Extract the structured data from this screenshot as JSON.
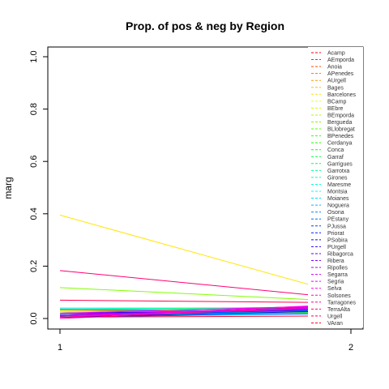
{
  "chart_data": {
    "type": "line",
    "title": "Prop. of pos & neg by Region",
    "xlabel": "",
    "ylabel": "marg",
    "x": [
      1,
      2
    ],
    "x_ticks": [
      "1",
      "2"
    ],
    "ylim": [
      0,
      1
    ],
    "y_ticks": [
      "0.0",
      "0.2",
      "0.4",
      "0.6",
      "0.8",
      "1.0"
    ],
    "grid": false,
    "legend_position": "right",
    "series": [
      {
        "name": "Acamp",
        "color": "#ff0000",
        "values": [
          0.02,
          0.03
        ]
      },
      {
        "name": "AEmporda",
        "color": "#ff2600",
        "values": [
          0.005,
          0.035
        ]
      },
      {
        "name": "Anoia",
        "color": "#ff4d00",
        "values": [
          0.03,
          0.025
        ]
      },
      {
        "name": "APenedes",
        "color": "#ff7300",
        "values": [
          0.02,
          0.02
        ]
      },
      {
        "name": "AUrgell",
        "color": "#ff9900",
        "values": [
          0.015,
          0.03
        ]
      },
      {
        "name": "Bages",
        "color": "#ffbf00",
        "values": [
          0.02,
          0.025
        ]
      },
      {
        "name": "Barcelones",
        "color": "#ffe600",
        "values": [
          0.395,
          0.085
        ]
      },
      {
        "name": "BCamp",
        "color": "#f2ff00",
        "values": [
          0.03,
          0.04
        ]
      },
      {
        "name": "BEbre",
        "color": "#ccff00",
        "values": [
          0.01,
          0.045
        ]
      },
      {
        "name": "BEmporda",
        "color": "#a6ff00",
        "values": [
          0.025,
          0.03
        ]
      },
      {
        "name": "Bergueda",
        "color": "#80ff00",
        "values": [
          0.118,
          0.065
        ]
      },
      {
        "name": "BLlobregat",
        "color": "#59ff00",
        "values": [
          0.035,
          0.04
        ]
      },
      {
        "name": "BPenedes",
        "color": "#33ff00",
        "values": [
          0.01,
          0.02
        ]
      },
      {
        "name": "Cerdanya",
        "color": "#0dff00",
        "values": [
          0.005,
          0.025
        ]
      },
      {
        "name": "Conca",
        "color": "#00ff1a",
        "values": [
          0.01,
          0.03
        ]
      },
      {
        "name": "Garraf",
        "color": "#00ff40",
        "values": [
          0.005,
          0.035
        ]
      },
      {
        "name": "Garrigues",
        "color": "#00ff66",
        "values": [
          0.012,
          0.028
        ]
      },
      {
        "name": "Garrotxa",
        "color": "#00ff8c",
        "values": [
          0.008,
          0.022
        ]
      },
      {
        "name": "Girones",
        "color": "#00ffb3",
        "values": [
          0.04,
          0.04
        ]
      },
      {
        "name": "Maresme",
        "color": "#00ffd9",
        "values": [
          0.035,
          0.045
        ]
      },
      {
        "name": "Montsia",
        "color": "#00ffff",
        "values": [
          0.01,
          0.02
        ]
      },
      {
        "name": "Moianes",
        "color": "#00d9ff",
        "values": [
          0.015,
          0.03
        ]
      },
      {
        "name": "Noguera",
        "color": "#00b3ff",
        "values": [
          0.02,
          0.03
        ]
      },
      {
        "name": "Osona",
        "color": "#008cff",
        "values": [
          0.035,
          0.025
        ]
      },
      {
        "name": "PEstany",
        "color": "#0066ff",
        "values": [
          0.005,
          0.02
        ]
      },
      {
        "name": "PJussa",
        "color": "#0040ff",
        "values": [
          0.01,
          0.035
        ]
      },
      {
        "name": "Priorat",
        "color": "#001aff",
        "values": [
          0.015,
          0.04
        ]
      },
      {
        "name": "PSobira",
        "color": "#0d00ff",
        "values": [
          0.005,
          0.03
        ]
      },
      {
        "name": "PUrgell",
        "color": "#3300ff",
        "values": [
          0.02,
          0.035
        ]
      },
      {
        "name": "Ribagorca",
        "color": "#5900ff",
        "values": [
          0.01,
          0.045
        ]
      },
      {
        "name": "Ribera",
        "color": "#8000ff",
        "values": [
          0.005,
          0.05
        ]
      },
      {
        "name": "Ripolles",
        "color": "#a600ff",
        "values": [
          0.015,
          0.04
        ]
      },
      {
        "name": "Segarra",
        "color": "#cc00ff",
        "values": [
          0.01,
          0.045
        ]
      },
      {
        "name": "Segria",
        "color": "#f200ff",
        "values": [
          0.02,
          0.05
        ]
      },
      {
        "name": "Selva",
        "color": "#ff00e6",
        "values": [
          0.005,
          0.055
        ]
      },
      {
        "name": "Solsones",
        "color": "#ff00bf",
        "values": [
          0.01,
          0.04
        ]
      },
      {
        "name": "Tarragones",
        "color": "#ff0099",
        "values": [
          0.0,
          0.05
        ]
      },
      {
        "name": "TerraAlta",
        "color": "#ff0073",
        "values": [
          0.183,
          0.075
        ]
      },
      {
        "name": "Urgell",
        "color": "#ff004d",
        "values": [
          0.07,
          0.06
        ]
      },
      {
        "name": "VAran",
        "color": "#ff0026",
        "values": [
          0.005,
          0.01
        ]
      }
    ]
  }
}
